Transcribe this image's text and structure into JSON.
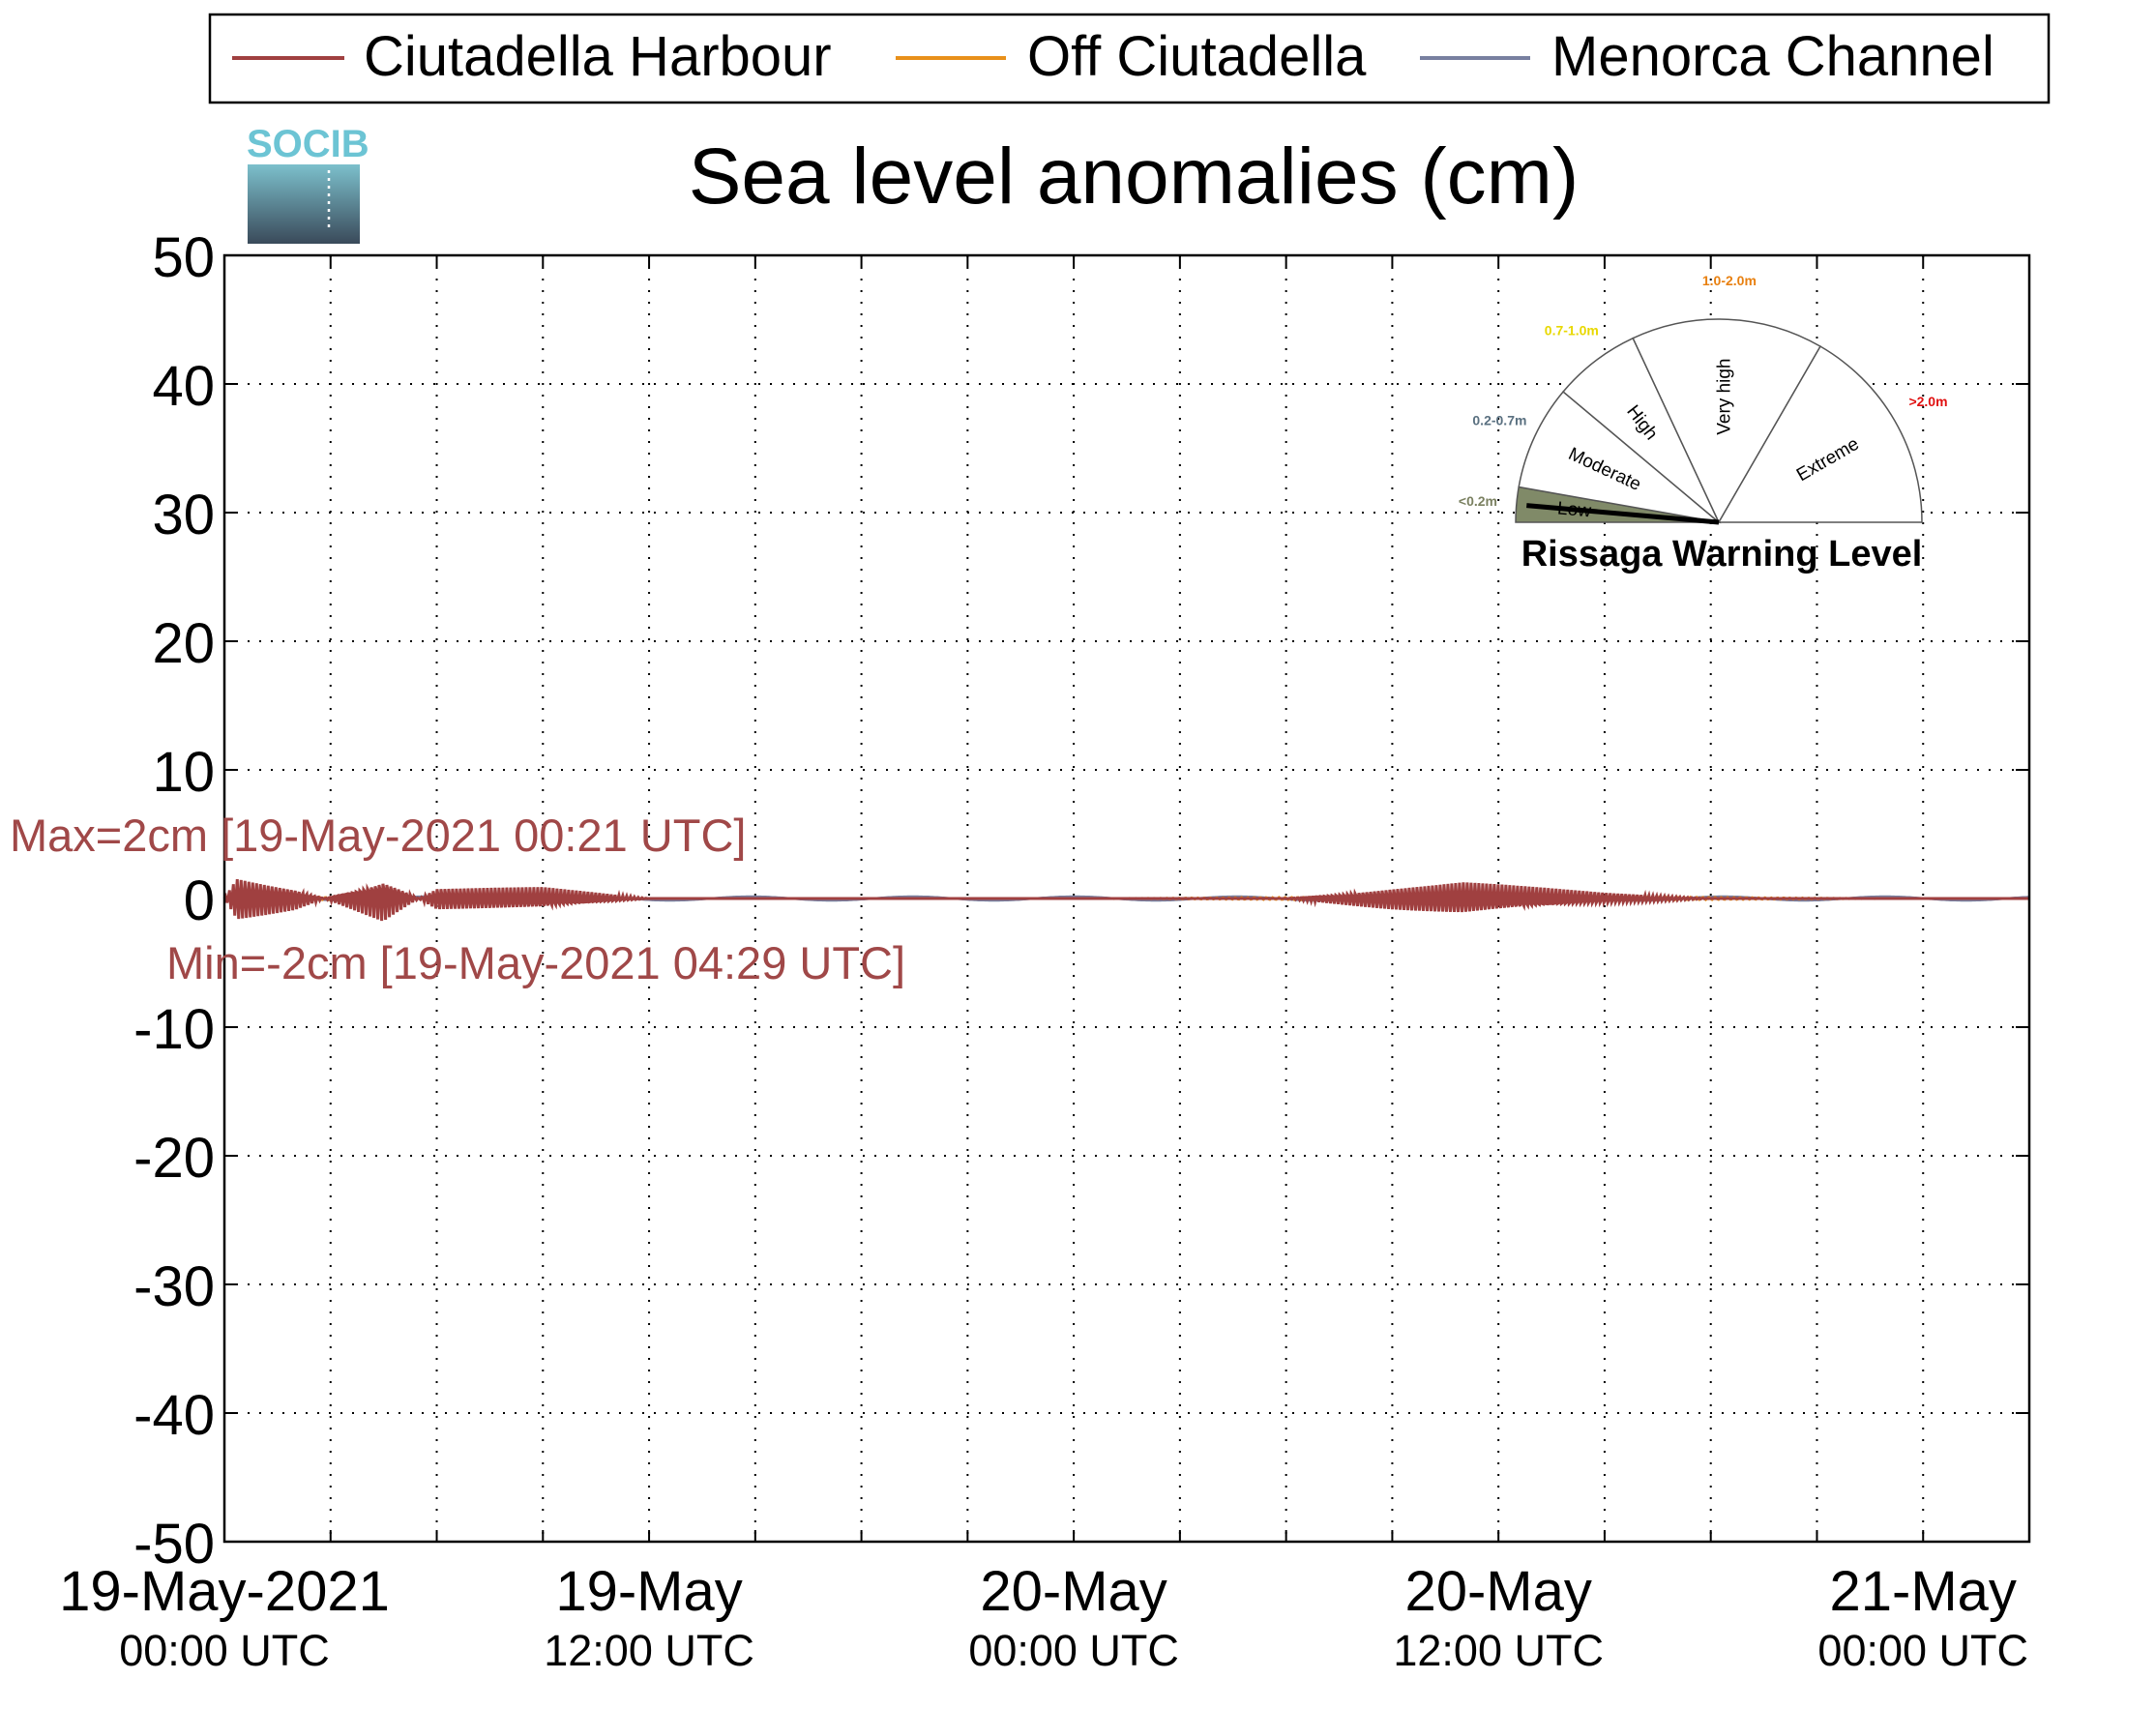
{
  "chart_data": {
    "type": "line",
    "title": "Sea level anomalies (cm)",
    "xlabel": "",
    "ylabel": "",
    "ylim": [
      -50,
      50
    ],
    "yticks": [
      50,
      40,
      30,
      20,
      10,
      0,
      -10,
      -20,
      -30,
      -40,
      -50
    ],
    "xlim": [
      "2021-05-19T00:00",
      "2021-05-21T03:00"
    ],
    "xticks": [
      {
        "at": "2021-05-19T00:00",
        "date": "19-May-2021",
        "time": "00:00 UTC"
      },
      {
        "at": "2021-05-19T12:00",
        "date": "19-May",
        "time": "12:00 UTC"
      },
      {
        "at": "2021-05-20T00:00",
        "date": "20-May",
        "time": "00:00 UTC"
      },
      {
        "at": "2021-05-20T12:00",
        "date": "20-May",
        "time": "12:00 UTC"
      },
      {
        "at": "2021-05-21T00:00",
        "date": "21-May",
        "time": "00:00 UTC"
      }
    ],
    "grid": true,
    "legend_position": "top",
    "series": [
      {
        "name": "Ciutadella Harbour",
        "color": "#a04040",
        "x": [
          "2021-05-19T00:00",
          "2021-05-19T00:21",
          "2021-05-19T02:00",
          "2021-05-19T04:29",
          "2021-05-19T06:00",
          "2021-05-19T09:00",
          "2021-05-19T12:00",
          "2021-05-19T18:00",
          "2021-05-20T00:00",
          "2021-05-20T06:00",
          "2021-05-20T09:00",
          "2021-05-20T11:00",
          "2021-05-20T13:00",
          "2021-05-20T15:00",
          "2021-05-20T18:00",
          "2021-05-21T00:00",
          "2021-05-21T03:00"
        ],
        "values": [
          0,
          2,
          1,
          -2,
          1,
          1,
          0,
          0,
          0,
          0,
          1,
          1.5,
          1,
          0.5,
          0,
          0,
          0
        ]
      },
      {
        "name": "Off Ciutadella",
        "color": "#e8901a",
        "x": [
          "2021-05-19T00:00",
          "2021-05-19T06:00",
          "2021-05-19T12:00",
          "2021-05-20T00:00",
          "2021-05-20T12:00",
          "2021-05-21T00:00",
          "2021-05-21T03:00"
        ],
        "values": [
          0.5,
          0,
          0,
          0,
          0.5,
          0,
          0
        ]
      },
      {
        "name": "Menorca Channel",
        "color": "#7880a0",
        "x": [
          "2021-05-19T00:00",
          "2021-05-19T06:00",
          "2021-05-19T12:00",
          "2021-05-20T00:00",
          "2021-05-20T12:00",
          "2021-05-21T00:00",
          "2021-05-21T03:00"
        ],
        "values": [
          0,
          0,
          0,
          0,
          0,
          0,
          0
        ]
      }
    ],
    "annotations": {
      "max": "Max=2cm [19-May-2021 00:21 UTC]",
      "min": "Min=-2cm [19-May-2021 04:29 UTC]"
    }
  },
  "logo": {
    "text": "SOCIB"
  },
  "gauge": {
    "title": "Rissaga Warning Level",
    "current_level": "Low",
    "sectors": [
      {
        "label": "Low",
        "range": "<0.2m",
        "range_color": "#7a8060",
        "fill": "#808a68",
        "active": true
      },
      {
        "label": "Moderate",
        "range": "0.2-0.7m",
        "range_color": "#5a7080",
        "fill": "#ffffff",
        "active": false
      },
      {
        "label": "High",
        "range": "0.7-1.0m",
        "range_color": "#e8d800",
        "fill": "#ffffff",
        "active": false
      },
      {
        "label": "Very high",
        "range": "1.0-2.0m",
        "range_color": "#e88010",
        "fill": "#ffffff",
        "active": false
      },
      {
        "label": "Extreme",
        "range": ">2.0m",
        "range_color": "#e01010",
        "fill": "#ffffff",
        "active": false
      }
    ]
  }
}
